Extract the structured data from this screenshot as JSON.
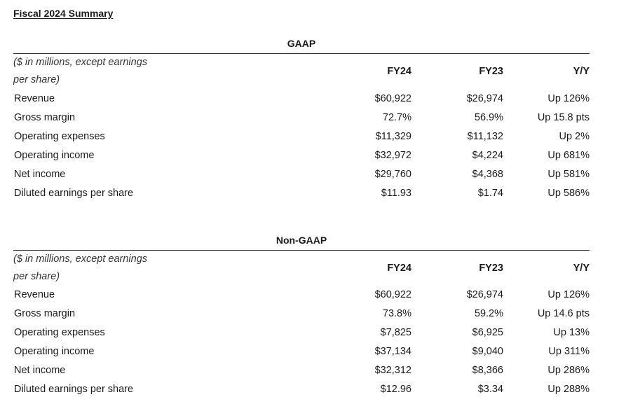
{
  "title": "Fiscal 2024 Summary",
  "gaap": {
    "heading": "GAAP",
    "units_line1": "($ in millions, except earnings",
    "units_line2": "per share)",
    "columns": [
      "FY24",
      "FY23",
      "Y/Y"
    ],
    "rows": [
      {
        "label": "Revenue",
        "fy24": "$60,922",
        "fy23": "$26,974",
        "yy": "Up 126%"
      },
      {
        "label": "Gross margin",
        "fy24": "72.7%",
        "fy23": "56.9%",
        "yy": "Up 15.8 pts"
      },
      {
        "label": "Operating expenses",
        "fy24": "$11,329",
        "fy23": "$11,132",
        "yy": "Up 2%"
      },
      {
        "label": "Operating income",
        "fy24": "$32,972",
        "fy23": "$4,224",
        "yy": "Up 681%"
      },
      {
        "label": "Net income",
        "fy24": "$29,760",
        "fy23": "$4,368",
        "yy": "Up 581%"
      },
      {
        "label": "Diluted earnings per share",
        "fy24": "$11.93",
        "fy23": "$1.74",
        "yy": "Up 586%"
      }
    ]
  },
  "nongaap": {
    "heading": "Non-GAAP",
    "units_line1": "($ in millions, except earnings",
    "units_line2": "per share)",
    "columns": [
      "FY24",
      "FY23",
      "Y/Y"
    ],
    "rows": [
      {
        "label": "Revenue",
        "fy24": "$60,922",
        "fy23": "$26,974",
        "yy": "Up 126%"
      },
      {
        "label": "Gross margin",
        "fy24": "73.8%",
        "fy23": "59.2%",
        "yy": "Up 14.6 pts"
      },
      {
        "label": "Operating expenses",
        "fy24": "$7,825",
        "fy23": "$6,925",
        "yy": "Up 13%"
      },
      {
        "label": "Operating income",
        "fy24": "$37,134",
        "fy23": "$9,040",
        "yy": "Up 311%"
      },
      {
        "label": "Net income",
        "fy24": "$32,312",
        "fy23": "$8,366",
        "yy": "Up 286%"
      },
      {
        "label": "Diluted earnings per share",
        "fy24": "$12.96",
        "fy23": "$3.34",
        "yy": "Up 288%"
      }
    ]
  }
}
